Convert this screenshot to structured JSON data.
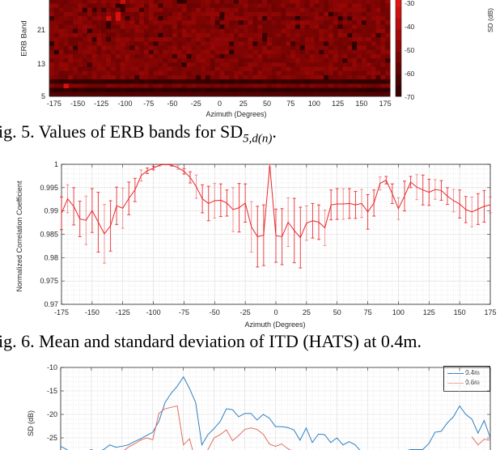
{
  "figures": [
    {
      "id": "fig5",
      "caption_prefix": "ig. 5. Values of ERB bands for SD",
      "caption_sub": "5,d(n)",
      "caption_suffix": "."
    },
    {
      "id": "fig6",
      "caption": "ig. 6. Mean and standard deviation of ITD (HATS) at 0.4m."
    }
  ],
  "chart_data": [
    {
      "type": "heatmap",
      "title": "",
      "xlabel": "Azimuth (Degrees)",
      "ylabel": "ERB Band",
      "colorbar_label": "SD (dB)",
      "x_ticks": [
        -175,
        -150,
        -125,
        -100,
        -75,
        -50,
        -25,
        0,
        25,
        50,
        75,
        100,
        125,
        150,
        175
      ],
      "y_ticks": [
        5,
        13,
        21
      ],
      "colorbar_ticks": [
        -30,
        -40,
        -50,
        -60,
        -70
      ],
      "colorbar_range": [
        -70,
        -25
      ],
      "colors": {
        "high": "#ff1a1a",
        "mid": "#8b0000",
        "low": "#200000"
      },
      "notes": "Mostly dark red (~-45 to -55 dB); brighter cells near -120 to -100 deg at bands 22-28; darkest rows near bands 6 and 8."
    },
    {
      "type": "line",
      "title": "",
      "xlabel": "Azimuth (Degrees)",
      "ylabel": "Normalized Correlation Coefficient",
      "xlim": [
        -175,
        175
      ],
      "ylim": [
        0.97,
        1.0
      ],
      "x_ticks": [
        -175,
        -150,
        -125,
        -100,
        -75,
        -50,
        -25,
        0,
        25,
        50,
        75,
        100,
        125,
        150,
        175
      ],
      "y_ticks": [
        0.97,
        0.975,
        0.98,
        0.985,
        0.99,
        0.995,
        1
      ],
      "grid": true,
      "series": [
        {
          "name": "ITD mean",
          "color": "#e8252a",
          "x": [
            -175,
            -170,
            -165,
            -160,
            -155,
            -150,
            -145,
            -140,
            -135,
            -130,
            -125,
            -120,
            -115,
            -110,
            -105,
            -100,
            -95,
            -90,
            -85,
            -80,
            -75,
            -70,
            -65,
            -60,
            -55,
            -50,
            -45,
            -40,
            -35,
            -30,
            -25,
            -20,
            -15,
            -10,
            -5,
            0,
            5,
            10,
            15,
            20,
            25,
            30,
            35,
            40,
            45,
            50,
            55,
            60,
            65,
            70,
            75,
            80,
            85,
            90,
            95,
            100,
            105,
            110,
            115,
            120,
            125,
            130,
            135,
            140,
            145,
            150,
            155,
            160,
            165,
            170,
            175
          ],
          "values": [
            0.9895,
            0.9926,
            0.991,
            0.9883,
            0.988,
            0.9901,
            0.9876,
            0.9851,
            0.9868,
            0.9911,
            0.9906,
            0.9927,
            0.9945,
            0.9976,
            0.9986,
            0.9992,
            0.9998,
            1.0,
            0.9998,
            0.9993,
            0.9985,
            0.9972,
            0.9952,
            0.9926,
            0.9916,
            0.9922,
            0.9923,
            0.9917,
            0.9903,
            0.9907,
            0.9917,
            0.9866,
            0.9845,
            0.9848,
            0.9998,
            0.9847,
            0.9845,
            0.9876,
            0.9858,
            0.9843,
            0.9874,
            0.9879,
            0.9876,
            0.9864,
            0.9913,
            0.9915,
            0.9915,
            0.9916,
            0.9913,
            0.9916,
            0.9898,
            0.9917,
            0.9959,
            0.9966,
            0.9937,
            0.9905,
            0.9932,
            0.9962,
            0.9951,
            0.9945,
            0.994,
            0.9946,
            0.9944,
            0.9932,
            0.9922,
            0.9915,
            0.9903,
            0.9898,
            0.9904,
            0.991,
            0.9913
          ],
          "error": [
            0.0035,
            0.003,
            0.004,
            0.0038,
            0.0052,
            0.0047,
            0.0064,
            0.0063,
            0.0054,
            0.004,
            0.0043,
            0.0035,
            0.0025,
            0.0012,
            0.0006,
            0.0004,
            0.0002,
            0.0001,
            0.0002,
            0.0004,
            0.0006,
            0.0012,
            0.0025,
            0.003,
            0.0037,
            0.0037,
            0.0035,
            0.0028,
            0.0047,
            0.0052,
            0.0041,
            0.0054,
            0.0065,
            0.0065,
            0.0005,
            0.0057,
            0.006,
            0.0052,
            0.0069,
            0.0065,
            0.0037,
            0.0037,
            0.0037,
            0.0038,
            0.0032,
            0.0033,
            0.0033,
            0.0032,
            0.0029,
            0.003,
            0.0037,
            0.0028,
            0.0014,
            0.0008,
            0.0021,
            0.0023,
            0.0032,
            0.0012,
            0.0027,
            0.0032,
            0.0028,
            0.0021,
            0.0021,
            0.0018,
            0.0024,
            0.003,
            0.0028,
            0.0032,
            0.0033,
            0.0034,
            0.0017
          ]
        }
      ]
    },
    {
      "type": "line",
      "title": "",
      "xlabel": "",
      "ylabel": "SD (dB)",
      "xlim": [
        -175,
        175
      ],
      "ylim": [
        -27,
        -10
      ],
      "y_ticks": [
        -10,
        -15,
        -20,
        -25
      ],
      "grid": true,
      "legend": {
        "position": "upper right",
        "entries": [
          "0.4m",
          "0.6m"
        ]
      },
      "series": [
        {
          "name": "0.4m",
          "color": "#2f7fc1",
          "x": [
            -175,
            -170,
            -165,
            -160,
            -155,
            -150,
            -145,
            -140,
            -135,
            -130,
            -125,
            -120,
            -115,
            -110,
            -105,
            -100,
            -95,
            -90,
            -85,
            -80,
            -75,
            -70,
            -65,
            -60,
            -55,
            -50,
            -45,
            -40,
            -35,
            -30,
            -25,
            -20,
            -15,
            -10,
            -5,
            0,
            5,
            10,
            15,
            20,
            25,
            30,
            35,
            40,
            45,
            50,
            55,
            60,
            65,
            70,
            75,
            80,
            85,
            90,
            95,
            100,
            105,
            110,
            115,
            120,
            125,
            130,
            135,
            140,
            145,
            150,
            155,
            160,
            165,
            170,
            175
          ],
          "values": [
            -26.8,
            -27.5,
            -28.5,
            -29,
            -28,
            -27.5,
            -28,
            -27.5,
            -26.5,
            -27,
            -26.8,
            -26.5,
            -25.8,
            -25.2,
            -24.5,
            -23.8,
            -21.5,
            -17.5,
            -15.5,
            -14,
            -12,
            -14.5,
            -17.5,
            -26.5,
            -24.3,
            -23,
            -21.5,
            -18.8,
            -19,
            -20.5,
            -19.8,
            -19.8,
            -21.2,
            -20,
            -20.8,
            -22.6,
            -22.6,
            -22.8,
            -23.3,
            -25.5,
            -22.9,
            -26,
            -24.2,
            -24.3,
            -26,
            -25,
            -26.5,
            -25.8,
            -26.5,
            -28,
            -29,
            -29.5,
            -29.5,
            -29,
            -28.5,
            -28,
            -27.8,
            -27.5,
            -27.5,
            -27.5,
            -26.2,
            -23.8,
            -23.6,
            -21.8,
            -20.5,
            -18.2,
            -20,
            -21,
            -24,
            -21.3,
            -25
          ]
        },
        {
          "name": "0.6m",
          "color": "#e07060",
          "x": [
            -125,
            -120,
            -115,
            -110,
            -105,
            -100,
            -95,
            -90,
            -85,
            -80,
            -75,
            -70,
            -65,
            -60,
            -55,
            -50,
            -45,
            -40,
            -35,
            -30,
            -25,
            -20,
            -15,
            -10,
            -5,
            0,
            5,
            10,
            15,
            20,
            160,
            165,
            170,
            175
          ],
          "values": [
            -28,
            -27,
            -26.3,
            -25.5,
            -25,
            -25.4,
            -19.8,
            -18.8,
            -18.5,
            -18.2,
            -26.5,
            -25.2,
            -30,
            -29,
            -27.5,
            -25,
            -24.3,
            -23.3,
            -25.6,
            -24.5,
            -23.2,
            -22.9,
            -23.2,
            -24.2,
            -26.3,
            -26.8,
            -26.3,
            -27.3,
            -28,
            -29,
            -24.8,
            -26.5,
            -25.3,
            -25.5
          ]
        }
      ]
    }
  ]
}
